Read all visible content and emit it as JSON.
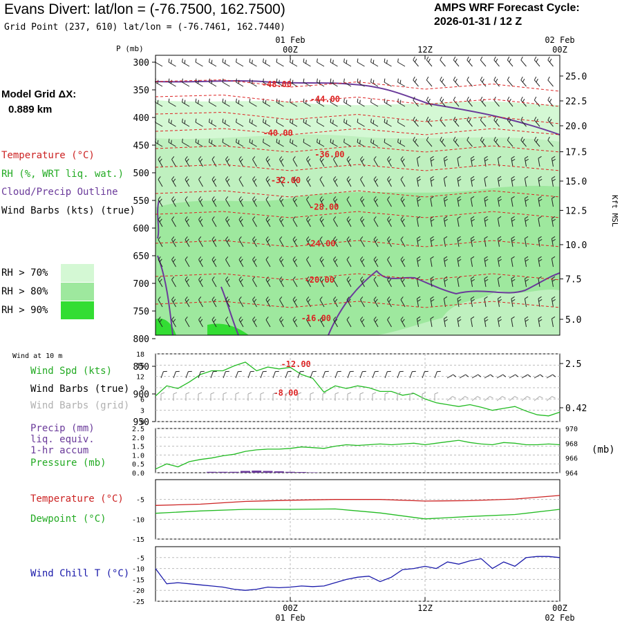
{
  "header": {
    "title": "Evans Divert:  lat/lon = (-76.7500, 162.7500)",
    "subtitle": "Grid Point (237, 610) lat/lon = (-76.7461, 162.7440)",
    "cycle_line1": "AMPS WRF Forecast Cycle:",
    "cycle_line2": "2026-01-31 / 12  Z",
    "grid_label_line1": "Model Grid ΔX:",
    "grid_label_line2": "0.889 km"
  },
  "legend": {
    "temperature": "Temperature (°C)",
    "rh": "RH (%, WRT liq. wat.)",
    "cloud": "Cloud/Precip Outline",
    "wind": "Wind Barbs (kts) (true)",
    "rh70": "RH > 70%",
    "rh80": "RH > 80%",
    "rh90": "RH > 90%",
    "rh70_color": "#d4f8d4",
    "rh80_color": "#9ee89e",
    "rh90_color": "#33dd33"
  },
  "bottom_legends": {
    "wind_10m": "Wind at 10 m",
    "wind_spd": "Wind Spd (kts)",
    "barbs_true": "Wind Barbs (true)",
    "barbs_grid": "Wind Barbs (grid)",
    "precip1": "Precip (mm)",
    "precip2": "liq. equiv.",
    "precip3": "1-hr accum",
    "pressure": "Pressure (mb)",
    "pressure_unit": "(mb)",
    "temperature": "Temperature (°C)",
    "dewpoint": "Dewpoint (°C)",
    "windchill": "Wind Chill T (°C)"
  },
  "chart_data": [
    {
      "type": "heatmap",
      "name": "time-height cross section",
      "yaxis_label": "P (mb)",
      "right_axis_label": "Kft MSL",
      "pressure_ticks": [
        300,
        350,
        400,
        450,
        500,
        550,
        600,
        650,
        700,
        750,
        800,
        850,
        900,
        950
      ],
      "kft_ticks": [
        {
          "p": 325,
          "label": "25.0"
        },
        {
          "p": 370,
          "label": "22.5"
        },
        {
          "p": 415,
          "label": "20.0"
        },
        {
          "p": 462,
          "label": "17.5"
        },
        {
          "p": 515,
          "label": "15.0"
        },
        {
          "p": 568,
          "label": "12.5"
        },
        {
          "p": 630,
          "label": "10.0"
        },
        {
          "p": 692,
          "label": "7.5"
        },
        {
          "p": 765,
          "label": "5.0"
        },
        {
          "p": 845,
          "label": "2.5"
        },
        {
          "p": 925,
          "label": "0.42"
        }
      ],
      "time_ticks": [
        {
          "hour": 12,
          "top": "00Z",
          "top_date": "01 Feb",
          "bottom": "00Z",
          "bottom_date": "01 Feb"
        },
        {
          "hour": 24,
          "top": "12Z",
          "top_date": "",
          "bottom": "12Z",
          "bottom_date": ""
        },
        {
          "hour": 36,
          "top": "00Z",
          "top_date": "02 Feb",
          "bottom": "00Z",
          "bottom_date": "02 Feb"
        }
      ],
      "isotherm_labels": [
        {
          "hour": 10.8,
          "p": 340,
          "label": "-48.00"
        },
        {
          "hour": 15.1,
          "p": 367,
          "label": "-44.00"
        },
        {
          "hour": 10.9,
          "p": 428,
          "label": "-40.00"
        },
        {
          "hour": 15.5,
          "p": 467,
          "label": "-36.00"
        },
        {
          "hour": 11.6,
          "p": 514,
          "label": "-32.00"
        },
        {
          "hour": 15.0,
          "p": 562,
          "label": "-28.00"
        },
        {
          "hour": 14.7,
          "p": 628,
          "label": "-24.00"
        },
        {
          "hour": 14.6,
          "p": 694,
          "label": "-20.00"
        },
        {
          "hour": 14.3,
          "p": 763,
          "label": "-16.00"
        },
        {
          "hour": 12.5,
          "p": 846,
          "label": "-12.00"
        },
        {
          "hour": 11.6,
          "p": 898,
          "label": "-8.00"
        }
      ]
    },
    {
      "type": "line",
      "name": "wind speed 10m",
      "ylim": [
        0,
        18
      ],
      "yticks": [
        0,
        3,
        6,
        9,
        12,
        15,
        18
      ],
      "x": [
        0,
        1,
        2,
        3,
        4,
        5,
        6,
        7,
        8,
        9,
        10,
        11,
        12,
        13,
        14,
        15,
        16,
        17,
        18,
        19,
        20,
        21,
        22,
        23,
        24,
        25,
        26,
        27,
        28,
        29,
        30,
        31,
        32,
        33,
        34,
        35,
        36
      ],
      "values": [
        6.8,
        9.5,
        8.8,
        10.5,
        12.5,
        13.5,
        13.5,
        14.8,
        15.8,
        13.5,
        14.5,
        14.0,
        14.4,
        12.5,
        11.5,
        7.8,
        9.5,
        8.8,
        9.5,
        9.0,
        8.0,
        8.0,
        7.0,
        7.5,
        6.0,
        5.0,
        4.5,
        4.0,
        4.5,
        3.8,
        3.0,
        3.5,
        4.0,
        2.8,
        1.8,
        1.5,
        2.5
      ]
    },
    {
      "type": "line",
      "name": "precip and pressure",
      "left_ylim": [
        0,
        2.5
      ],
      "left_yticks": [
        "0.0",
        "0.5",
        "1.0",
        "1.5",
        "2.0",
        "2.5"
      ],
      "right_ylim": [
        964,
        970
      ],
      "right_yticks": [
        964,
        966,
        968,
        970
      ],
      "x": [
        0,
        1,
        2,
        3,
        4,
        5,
        6,
        7,
        8,
        9,
        10,
        11,
        12,
        13,
        14,
        15,
        16,
        17,
        18,
        19,
        20,
        21,
        22,
        23,
        24,
        25,
        26,
        27,
        28,
        29,
        30,
        31,
        32,
        33,
        34,
        35,
        36
      ],
      "pressure": [
        964.5,
        965.2,
        964.8,
        965.5,
        965.8,
        966.0,
        966.3,
        966.5,
        966.9,
        967.1,
        967.2,
        967.2,
        967.3,
        967.5,
        967.4,
        967.3,
        967.6,
        967.8,
        967.7,
        967.8,
        967.9,
        967.8,
        967.9,
        968.0,
        967.8,
        968.0,
        968.2,
        968.4,
        968.1,
        967.9,
        967.8,
        968.1,
        968.0,
        967.8,
        967.8,
        967.9,
        967.8
      ],
      "precip": [
        0,
        0,
        0,
        0,
        0,
        0.05,
        0.05,
        0.05,
        0.1,
        0.12,
        0.1,
        0.08,
        0.05,
        0.04,
        0.02,
        0,
        0,
        0,
        0,
        0,
        0,
        0,
        0,
        0,
        0,
        0,
        0,
        0,
        0,
        0,
        0,
        0,
        0,
        0,
        0,
        0,
        0
      ]
    },
    {
      "type": "line",
      "name": "temperature and dewpoint",
      "ylim": [
        -15,
        0
      ],
      "yticks": [
        -15,
        -10,
        -5
      ],
      "x": [
        0,
        4,
        8,
        12,
        16,
        20,
        24,
        28,
        32,
        36
      ],
      "temperature": [
        -6.5,
        -6.2,
        -5.5,
        -5.2,
        -5.0,
        -5.0,
        -5.4,
        -5.3,
        -4.9,
        -4.0
      ],
      "dewpoint": [
        -8.5,
        -7.9,
        -7.5,
        -7.5,
        -7.4,
        -8.4,
        -9.9,
        -9.3,
        -8.8,
        -7.5
      ]
    },
    {
      "type": "line",
      "name": "wind chill",
      "ylim": [
        -25,
        0
      ],
      "yticks": [
        -25,
        -20,
        -15,
        -10,
        -5
      ],
      "x": [
        0,
        1,
        2,
        3,
        4,
        5,
        6,
        7,
        8,
        9,
        10,
        11,
        12,
        13,
        14,
        15,
        16,
        17,
        18,
        19,
        20,
        21,
        22,
        23,
        24,
        25,
        26,
        27,
        28,
        29,
        30,
        31,
        32,
        33,
        34,
        35,
        36
      ],
      "values": [
        -10,
        -17,
        -16.5,
        -17,
        -17.5,
        -18,
        -18.5,
        -19.5,
        -20,
        -19.5,
        -18.5,
        -18.8,
        -18.5,
        -18,
        -18.3,
        -18,
        -16.5,
        -15,
        -14,
        -13.5,
        -16,
        -14,
        -10.5,
        -10,
        -9,
        -10,
        -7,
        -8,
        -6.5,
        -5.5,
        -10,
        -7,
        -9,
        -5,
        -4.5,
        -4.5,
        -5
      ]
    }
  ]
}
